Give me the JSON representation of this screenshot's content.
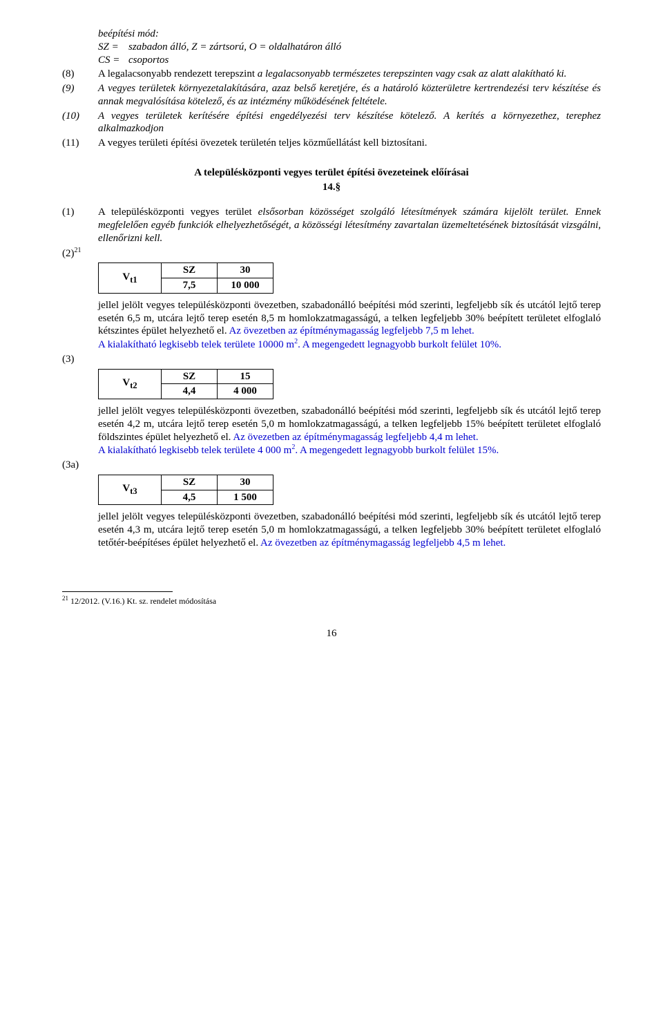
{
  "defs": {
    "heading": "beépítési mód:",
    "sz": {
      "key": "SZ =",
      "text": "szabadon álló, Z = zártsorú, O = oldalhatáron álló"
    },
    "cs": {
      "key": "CS =",
      "text": "csoportos"
    }
  },
  "paras": {
    "p8": {
      "num": "(8)",
      "lead": "A legalacsonyabb rendezett terepszint ",
      "ital": "a legalacsonyabb természetes terepszinten vagy csak az alatt alakítható ki."
    },
    "p9": {
      "num": "(9)",
      "text": "A vegyes területek környezetalakítására, azaz belső keretjére, és a határoló közterületre kertrendezési terv készítése és annak megvalósítása kötelező, és az intézmény működésének feltétele."
    },
    "p10": {
      "num": "(10)",
      "text": "A vegyes területek kerítésére építési engedélyezési terv készítése kötelező. A kerítés a környezethez, terephez alkalmazkodjon"
    },
    "p11": {
      "num": "(11)",
      "text": "A vegyes területi építési övezetek területén teljes közműellátást kell biztosítani."
    }
  },
  "heading": {
    "title": "A településközponti vegyes terület építési övezeteinek előírásai",
    "sec": "14.§"
  },
  "para1": {
    "num": "(1)",
    "lead": "A településközponti vegyes terület",
    "ital": " elsősorban közösséget szolgáló létesítmények számára kijelölt terület. Ennek megfelelően egyéb funkciók elhelyezhetőségét, a közösségi létesítmény zavartalan üzemeltetésének biztosítását vizsgálni, ellenőrizni kell."
  },
  "para2": {
    "num": "(2)",
    "sup": "21"
  },
  "zone1": {
    "label": "V",
    "sub": "t1",
    "r1c1": "SZ",
    "r1c2": "30",
    "r2c1": "7,5",
    "r2c2": "10 000"
  },
  "block1": {
    "black": "jellel jelölt vegyes településközponti övezetben, szabadonálló beépítési mód szerinti, legfeljebb sík és utcától lejtő terep esetén 6,5 m, utcára lejtő terep esetén 8,5 m homlokzatmagasságú, a telken legfeljebb 30% beépített területet elfoglaló kétszintes épület helyezhető el.",
    "blue1": " Az övezetben az építménymagasság legfeljebb 7,5 m lehet.",
    "blue2a": "A kialakítható legkisebb telek területe 10000 m",
    "blue2b": ". A megengedett legnagyobb burkolt felület 10%."
  },
  "para3": {
    "num": "(3)"
  },
  "zone2": {
    "label": "V",
    "sub": "t2",
    "r1c1": "SZ",
    "r1c2": "15",
    "r2c1": "4,4",
    "r2c2": "4 000"
  },
  "block2": {
    "black": "jellel jelölt vegyes településközponti övezetben, szabadonálló beépítési mód szerinti, legfeljebb sík és utcától lejtő terep esetén 4,2 m, utcára lejtő terep esetén 5,0 m homlokzatmagasságú, a telken legfeljebb 15% beépített területet elfoglaló földszintes épület helyezhető el.",
    "blue1": " Az övezetben az építménymagasság legfeljebb 4,4 m lehet.",
    "blue2a": "A kialakítható legkisebb telek területe 4 000 m",
    "blue2b": ". A megengedett legnagyobb burkolt felület 15%."
  },
  "para3a": {
    "num": "(3a)"
  },
  "zone3": {
    "label": "V",
    "sub": "t3",
    "r1c1": "SZ",
    "r1c2": "30",
    "r2c1": "4,5",
    "r2c2": "1 500"
  },
  "block3": {
    "black": "jellel jelölt vegyes településközponti övezetben, szabadonálló beépítési mód szerinti, legfeljebb sík és utcától lejtő terep esetén 4,3 m, utcára lejtő terep esetén 5,0 m homlokzatmagasságú, a telken legfeljebb 30% beépített területet elfoglaló tetőtér-beépítéses épület helyezhető el.",
    "blue1": " Az övezetben az építménymagasság legfeljebb 4,5 m lehet."
  },
  "footnote": {
    "sup": "21",
    "text": " 12/2012. (V.16.) Kt. sz. rendelet módosítása"
  },
  "pagenum": "16"
}
